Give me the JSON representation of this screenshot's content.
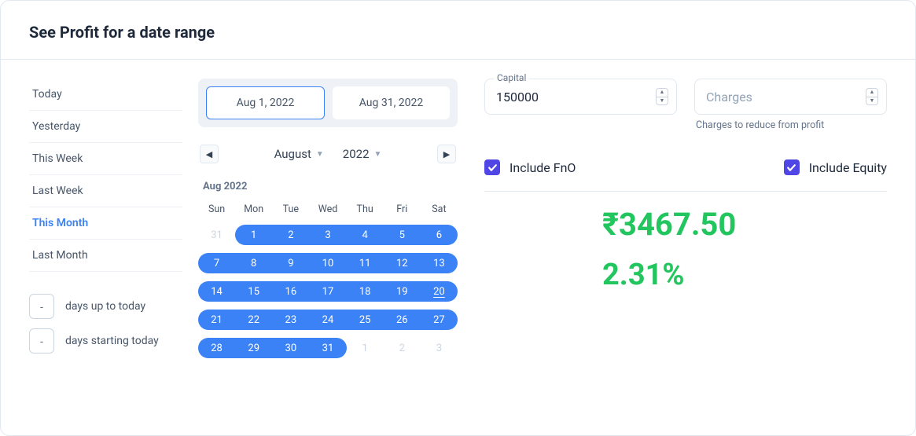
{
  "header": {
    "title": "See Profit for a date range"
  },
  "presets": {
    "items": [
      {
        "label": "Today",
        "active": false
      },
      {
        "label": "Yesterday",
        "active": false
      },
      {
        "label": "This Week",
        "active": false
      },
      {
        "label": "Last Week",
        "active": false
      },
      {
        "label": "This Month",
        "active": true
      },
      {
        "label": "Last Month",
        "active": false
      }
    ],
    "custom_before": {
      "value": "-",
      "label": "days up to today"
    },
    "custom_after": {
      "value": "-",
      "label": "days starting today"
    }
  },
  "calendar": {
    "range_start_display": "Aug 1, 2022",
    "range_end_display": "Aug 31, 2022",
    "nav_month": "August",
    "nav_year": "2022",
    "month_label": "Aug 2022",
    "dow": [
      "Sun",
      "Mon",
      "Tue",
      "Wed",
      "Thu",
      "Fri",
      "Sat"
    ],
    "rows": [
      [
        {
          "n": 31,
          "out": true,
          "range": false,
          "start": false,
          "end": false,
          "today": false
        },
        {
          "n": 1,
          "out": false,
          "range": true,
          "start": true,
          "end": false,
          "today": false
        },
        {
          "n": 2,
          "out": false,
          "range": true,
          "start": false,
          "end": false,
          "today": false
        },
        {
          "n": 3,
          "out": false,
          "range": true,
          "start": false,
          "end": false,
          "today": false
        },
        {
          "n": 4,
          "out": false,
          "range": true,
          "start": false,
          "end": false,
          "today": false
        },
        {
          "n": 5,
          "out": false,
          "range": true,
          "start": false,
          "end": false,
          "today": false
        },
        {
          "n": 6,
          "out": false,
          "range": true,
          "start": false,
          "end": true,
          "today": false
        }
      ],
      [
        {
          "n": 7,
          "out": false,
          "range": true,
          "start": true,
          "end": false,
          "today": false
        },
        {
          "n": 8,
          "out": false,
          "range": true,
          "start": false,
          "end": false,
          "today": false
        },
        {
          "n": 9,
          "out": false,
          "range": true,
          "start": false,
          "end": false,
          "today": false
        },
        {
          "n": 10,
          "out": false,
          "range": true,
          "start": false,
          "end": false,
          "today": false
        },
        {
          "n": 11,
          "out": false,
          "range": true,
          "start": false,
          "end": false,
          "today": false
        },
        {
          "n": 12,
          "out": false,
          "range": true,
          "start": false,
          "end": false,
          "today": false
        },
        {
          "n": 13,
          "out": false,
          "range": true,
          "start": false,
          "end": true,
          "today": false
        }
      ],
      [
        {
          "n": 14,
          "out": false,
          "range": true,
          "start": true,
          "end": false,
          "today": false
        },
        {
          "n": 15,
          "out": false,
          "range": true,
          "start": false,
          "end": false,
          "today": false
        },
        {
          "n": 16,
          "out": false,
          "range": true,
          "start": false,
          "end": false,
          "today": false
        },
        {
          "n": 17,
          "out": false,
          "range": true,
          "start": false,
          "end": false,
          "today": false
        },
        {
          "n": 18,
          "out": false,
          "range": true,
          "start": false,
          "end": false,
          "today": false
        },
        {
          "n": 19,
          "out": false,
          "range": true,
          "start": false,
          "end": false,
          "today": false
        },
        {
          "n": 20,
          "out": false,
          "range": true,
          "start": false,
          "end": true,
          "today": true
        }
      ],
      [
        {
          "n": 21,
          "out": false,
          "range": true,
          "start": true,
          "end": false,
          "today": false
        },
        {
          "n": 22,
          "out": false,
          "range": true,
          "start": false,
          "end": false,
          "today": false
        },
        {
          "n": 23,
          "out": false,
          "range": true,
          "start": false,
          "end": false,
          "today": false
        },
        {
          "n": 24,
          "out": false,
          "range": true,
          "start": false,
          "end": false,
          "today": false
        },
        {
          "n": 25,
          "out": false,
          "range": true,
          "start": false,
          "end": false,
          "today": false
        },
        {
          "n": 26,
          "out": false,
          "range": true,
          "start": false,
          "end": false,
          "today": false
        },
        {
          "n": 27,
          "out": false,
          "range": true,
          "start": false,
          "end": true,
          "today": false
        }
      ],
      [
        {
          "n": 28,
          "out": false,
          "range": true,
          "start": true,
          "end": false,
          "today": false
        },
        {
          "n": 29,
          "out": false,
          "range": true,
          "start": false,
          "end": false,
          "today": false
        },
        {
          "n": 30,
          "out": false,
          "range": true,
          "start": false,
          "end": false,
          "today": false
        },
        {
          "n": 31,
          "out": false,
          "range": true,
          "start": false,
          "end": true,
          "today": false
        },
        {
          "n": 1,
          "out": true,
          "range": false,
          "start": false,
          "end": false,
          "today": false
        },
        {
          "n": 2,
          "out": true,
          "range": false,
          "start": false,
          "end": false,
          "today": false
        },
        {
          "n": 3,
          "out": true,
          "range": false,
          "start": false,
          "end": false,
          "today": false
        }
      ]
    ],
    "colors": {
      "range_bg": "#3b82f6",
      "range_fg": "#ffffff",
      "out_fg": "#cbd5e1"
    }
  },
  "inputs": {
    "capital": {
      "label": "Capital",
      "value": "150000"
    },
    "charges": {
      "placeholder": "Charges",
      "help": "Charges to reduce from profit"
    }
  },
  "checks": {
    "fno": {
      "label": "Include FnO",
      "checked": true
    },
    "equity": {
      "label": "Include Equity",
      "checked": true
    },
    "color_checked": "#4f46e5"
  },
  "result": {
    "value": "₹3467.50",
    "pct": "2.31%",
    "color": "#22c55e"
  }
}
